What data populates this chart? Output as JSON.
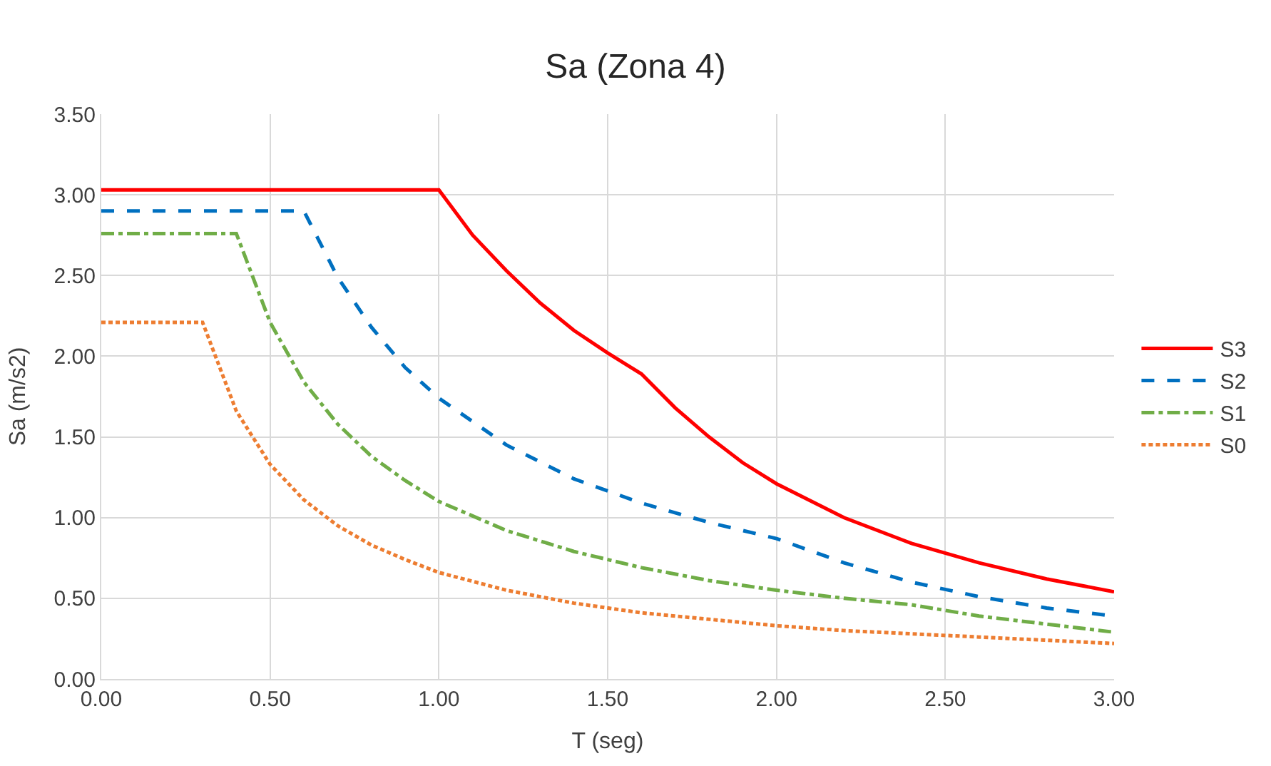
{
  "chart_data": {
    "type": "line",
    "title": "Sa (Zona 4)",
    "xlabel": "T (seg)",
    "ylabel": "Sa (m/s2)",
    "xlim": [
      0,
      3
    ],
    "xticks": [
      {
        "value": 0,
        "label": "0.00"
      },
      {
        "value": 0.5,
        "label": "0.50"
      },
      {
        "value": 1,
        "label": "1.00"
      },
      {
        "value": 1.5,
        "label": "1.50"
      },
      {
        "value": 2,
        "label": "2.00"
      },
      {
        "value": 2.5,
        "label": "2.50"
      },
      {
        "value": 3,
        "label": "3.00"
      }
    ],
    "ylim": [
      0,
      3.5
    ],
    "yticks": [
      {
        "value": 0,
        "label": "0.00"
      },
      {
        "value": 0.5,
        "label": "0.50"
      },
      {
        "value": 1,
        "label": "1.00"
      },
      {
        "value": 1.5,
        "label": "1.50"
      },
      {
        "value": 2,
        "label": "2.00"
      },
      {
        "value": 2.5,
        "label": "2.50"
      },
      {
        "value": 3,
        "label": "3.00"
      },
      {
        "value": 3.5,
        "label": "3.50"
      }
    ],
    "grid": true,
    "legend": "right",
    "marker": "none",
    "series": [
      {
        "name": "S3",
        "color": "#ff0000",
        "line_style": "solid",
        "x": [
          0,
          1.0,
          1.1,
          1.2,
          1.3,
          1.4,
          1.5,
          1.6,
          1.7,
          1.8,
          1.9,
          2.0,
          2.2,
          2.4,
          2.6,
          2.8,
          3.0
        ],
        "values": [
          3.03,
          3.03,
          2.75,
          2.53,
          2.33,
          2.16,
          2.02,
          1.89,
          1.68,
          1.5,
          1.34,
          1.21,
          1.0,
          0.84,
          0.72,
          0.62,
          0.54
        ]
      },
      {
        "name": "S2",
        "color": "#0070c0",
        "line_style": "dashed",
        "x": [
          0,
          0.6,
          0.7,
          0.8,
          0.9,
          1.0,
          1.2,
          1.4,
          1.6,
          1.8,
          2.0,
          2.2,
          2.4,
          2.6,
          2.8,
          3.0
        ],
        "values": [
          2.9,
          2.9,
          2.49,
          2.18,
          1.93,
          1.74,
          1.45,
          1.24,
          1.09,
          0.97,
          0.87,
          0.72,
          0.6,
          0.51,
          0.44,
          0.39
        ]
      },
      {
        "name": "S1",
        "color": "#70ad47",
        "line_style": "dashdot",
        "x": [
          0,
          0.4,
          0.5,
          0.6,
          0.7,
          0.8,
          0.9,
          1.0,
          1.2,
          1.4,
          1.6,
          1.8,
          2.0,
          2.2,
          2.4,
          2.6,
          2.8,
          3.0
        ],
        "values": [
          2.76,
          2.76,
          2.21,
          1.84,
          1.58,
          1.38,
          1.23,
          1.1,
          0.92,
          0.79,
          0.69,
          0.61,
          0.55,
          0.5,
          0.46,
          0.39,
          0.34,
          0.29
        ]
      },
      {
        "name": "S0",
        "color": "#ed7d31",
        "line_style": "dotted",
        "x": [
          0,
          0.3,
          0.4,
          0.5,
          0.6,
          0.7,
          0.8,
          0.9,
          1.0,
          1.2,
          1.4,
          1.6,
          1.8,
          2.0,
          2.2,
          2.4,
          2.6,
          2.8,
          3.0
        ],
        "values": [
          2.21,
          2.21,
          1.66,
          1.33,
          1.11,
          0.95,
          0.83,
          0.74,
          0.66,
          0.55,
          0.47,
          0.41,
          0.37,
          0.33,
          0.3,
          0.28,
          0.26,
          0.24,
          0.22
        ]
      }
    ]
  }
}
